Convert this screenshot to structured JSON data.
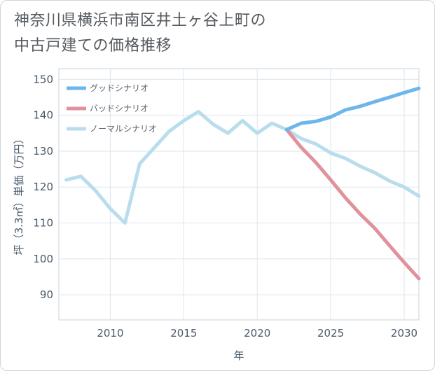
{
  "title": {
    "line1": "神奈川県横浜市南区井土ヶ谷上町の",
    "line2": "中古戸建ての価格推移"
  },
  "chart_data": {
    "type": "line",
    "title": "神奈川県横浜市南区井土ヶ谷上町の中古戸建ての価格推移",
    "xlabel": "年",
    "ylabel": "坪（3.3㎡）単価（万円）",
    "xlim": [
      2006.5,
      2031
    ],
    "ylim": [
      83,
      153
    ],
    "xticks": [
      2010,
      2015,
      2020,
      2025,
      2030
    ],
    "yticks": [
      90,
      100,
      110,
      120,
      130,
      140,
      150
    ],
    "grid": true,
    "legend_position": "top-left",
    "series": [
      {
        "name": "グッドシナリオ",
        "color": "#6cb6ec",
        "x": [
          2022,
          2023,
          2024,
          2025,
          2026,
          2027,
          2028,
          2029,
          2030,
          2031
        ],
        "y": [
          136.0,
          137.8,
          138.3,
          139.5,
          141.5,
          142.5,
          143.8,
          145.0,
          146.3,
          147.5
        ]
      },
      {
        "name": "バッドシナリオ",
        "color": "#e0919b",
        "x": [
          2022,
          2023,
          2024,
          2025,
          2026,
          2027,
          2028,
          2029,
          2030,
          2031
        ],
        "y": [
          136.0,
          131.0,
          126.8,
          122.0,
          117.0,
          112.5,
          108.5,
          103.7,
          99.0,
          94.5
        ]
      },
      {
        "name": "ノーマルシナリオ",
        "color": "#b9dded",
        "x": [
          2007,
          2008,
          2009,
          2010,
          2011,
          2012,
          2013,
          2014,
          2015,
          2016,
          2017,
          2018,
          2019,
          2020,
          2021,
          2022,
          2023,
          2024,
          2025,
          2026,
          2027,
          2028,
          2029,
          2030,
          2031
        ],
        "y": [
          122.0,
          123.0,
          119.0,
          114.0,
          110.0,
          126.5,
          131.0,
          135.5,
          138.5,
          141.0,
          137.5,
          135.0,
          138.5,
          135.0,
          137.8,
          136.0,
          133.5,
          132.0,
          129.5,
          128.0,
          125.8,
          124.0,
          121.7,
          120.0,
          117.5
        ]
      }
    ]
  }
}
